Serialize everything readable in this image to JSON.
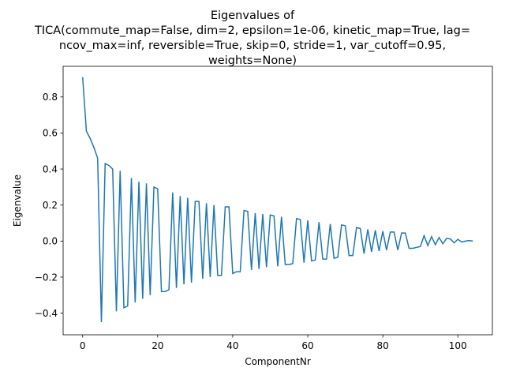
{
  "chart_data": {
    "type": "line",
    "title_lines": [
      "Eigenvalues of",
      "TICA(commute_map=False, dim=2, epsilon=1e-06, kinetic_map=True, lag=",
      "ncov_max=inf, reversible=True, skip=0, stride=1, var_cutoff=0.95,",
      "weights=None)"
    ],
    "xlabel": "ComponentNr",
    "ylabel": "Eigenvalue",
    "xlim": [
      -5.2,
      109.2
    ],
    "ylim": [
      -0.52,
      0.97
    ],
    "xticks": [
      0,
      20,
      40,
      60,
      80,
      100
    ],
    "yticks": [
      -0.4,
      -0.2,
      0.0,
      0.2,
      0.4,
      0.6,
      0.8
    ],
    "ytick_labels": [
      "−0.4",
      "−0.2",
      "0.0",
      "0.2",
      "0.4",
      "0.6",
      "0.8"
    ],
    "grid": false,
    "line_color": "#1f77b4",
    "x": [
      0,
      1,
      2,
      3,
      4,
      5,
      6,
      7,
      8,
      9,
      10,
      11,
      12,
      13,
      14,
      15,
      16,
      17,
      18,
      19,
      20,
      21,
      22,
      23,
      24,
      25,
      26,
      27,
      28,
      29,
      30,
      31,
      32,
      33,
      34,
      35,
      36,
      37,
      38,
      39,
      40,
      41,
      42,
      43,
      44,
      45,
      46,
      47,
      48,
      49,
      50,
      51,
      52,
      53,
      54,
      55,
      56,
      57,
      58,
      59,
      60,
      61,
      62,
      63,
      64,
      65,
      66,
      67,
      68,
      69,
      70,
      71,
      72,
      73,
      74,
      75,
      76,
      77,
      78,
      79,
      80,
      81,
      82,
      83,
      84,
      85,
      86,
      87,
      88,
      89,
      90,
      91,
      92,
      93,
      94,
      95,
      96,
      97,
      98,
      99,
      100,
      101,
      102,
      103,
      104
    ],
    "values": [
      0.91,
      0.61,
      0.57,
      0.52,
      0.46,
      -0.45,
      0.43,
      0.42,
      0.4,
      -0.39,
      0.39,
      -0.37,
      -0.36,
      0.35,
      -0.34,
      0.33,
      -0.32,
      0.32,
      -0.3,
      0.3,
      0.29,
      -0.28,
      -0.28,
      -0.27,
      0.27,
      -0.26,
      0.25,
      -0.24,
      0.24,
      -0.23,
      0.22,
      0.22,
      -0.21,
      0.21,
      -0.2,
      0.2,
      -0.19,
      -0.19,
      0.19,
      0.19,
      -0.18,
      -0.17,
      -0.17,
      0.17,
      0.165,
      -0.16,
      0.155,
      -0.155,
      0.15,
      -0.145,
      0.145,
      0.14,
      -0.14,
      0.135,
      -0.13,
      -0.13,
      -0.125,
      0.125,
      0.12,
      -0.12,
      0.115,
      -0.11,
      -0.105,
      0.105,
      -0.1,
      -0.1,
      0.095,
      -0.095,
      -0.09,
      0.09,
      0.085,
      -0.08,
      -0.08,
      0.075,
      0.07,
      -0.07,
      0.065,
      -0.06,
      0.06,
      -0.055,
      0.055,
      -0.05,
      0.05,
      0.05,
      -0.05,
      0.045,
      0.045,
      -0.04,
      -0.04,
      -0.035,
      -0.03,
      0.03,
      -0.025,
      0.025,
      -0.02,
      0.02,
      -0.015,
      0.015,
      0.012,
      -0.01,
      0.01,
      -0.005,
      0.0,
      0.003,
      0.0
    ]
  }
}
